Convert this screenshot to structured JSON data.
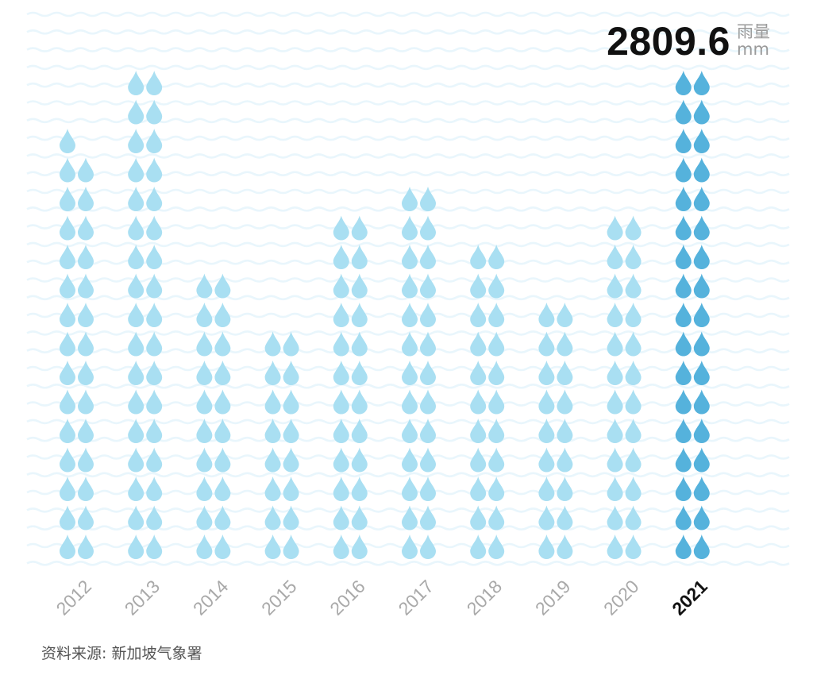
{
  "headline": {
    "value": "2809.6",
    "unit_line1": "雨量",
    "unit_line2": "mm"
  },
  "source": "资料来源: 新加坡气象署",
  "colors": {
    "drop": "#a9dff2",
    "drop_highlight": "#55b2dc",
    "wave": "#e9f6fc"
  },
  "chart_data": {
    "type": "bar",
    "encoding": "pictogram raindrops, two columns per year",
    "categories": [
      "2012",
      "2013",
      "2014",
      "2015",
      "2016",
      "2017",
      "2018",
      "2019",
      "2020",
      "2021"
    ],
    "drop_rows": [
      14.5,
      17,
      10,
      8,
      12,
      13,
      11,
      9,
      12,
      17
    ],
    "highlight": "2021",
    "highlight_value": 2809.6,
    "xlabel": "",
    "ylabel": ""
  }
}
